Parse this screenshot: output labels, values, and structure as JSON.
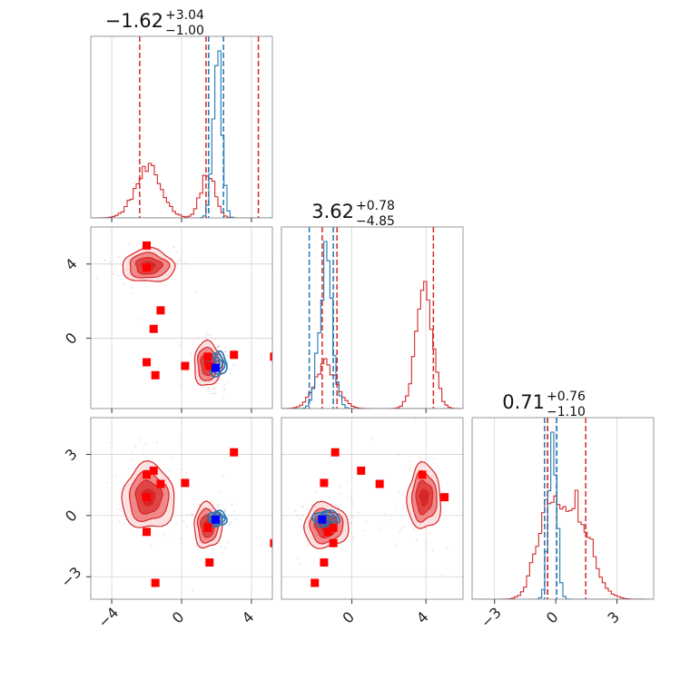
{
  "chart_data": {
    "type": "corner",
    "parameters": [
      {
        "title_value": "−1.62",
        "title_plus": "+3.04",
        "title_minus": "−1.00",
        "range": [
          -5.2,
          5.2
        ],
        "ticks": [
          -4,
          0,
          4
        ],
        "tick_labels": [
          "−4",
          "0",
          "4"
        ]
      },
      {
        "title_value": "3.62",
        "title_plus": "+0.78",
        "title_minus": "−4.85",
        "range": [
          -3.8,
          6.0
        ],
        "ticks": [
          0,
          4
        ],
        "tick_labels": [
          "0",
          "4"
        ]
      },
      {
        "title_value": "0.71",
        "title_plus": "+0.76",
        "title_minus": "−1.10",
        "range": [
          -4.1,
          4.8
        ],
        "ticks": [
          -3,
          0,
          3
        ],
        "tick_labels": [
          "−3",
          "0",
          "3"
        ]
      }
    ],
    "series": [
      {
        "color": "#d62728",
        "modes": [
          {
            "mean": [
              -1.9,
              3.9,
              0.9
            ],
            "sd": [
              0.75,
              0.45,
              0.8
            ],
            "weight": 0.67
          },
          {
            "mean": [
              1.5,
              -1.4,
              -0.5
            ],
            "sd": [
              0.4,
              0.6,
              0.55
            ],
            "weight": 0.33
          }
        ],
        "quantiles": [
          [
            -2.4,
            1.4,
            4.4
          ],
          [
            -1.6,
            -0.8,
            4.4
          ],
          [
            -0.4,
            -0.4,
            1.47
          ]
        ],
        "hist_1d_peak_rel": [
          0.3,
          0.7,
          0.6
        ]
      },
      {
        "color": "#1f77b4",
        "modes": [
          {
            "mean": [
              2.05,
              -1.4,
              -0.15
            ],
            "sd": [
              0.25,
              0.35,
              0.2
            ],
            "weight": 1.0
          }
        ],
        "quantiles": [
          [
            1.55,
            2.4
          ],
          [
            -2.3,
            -1.0
          ],
          [
            -0.55,
            0.05
          ]
        ]
      }
    ],
    "markers": {
      "red_squares": [
        [
          -2.0,
          5.0,
          0.9
        ],
        [
          -2.0,
          3.8,
          2.0
        ],
        [
          -1.6,
          0.5,
          2.2
        ],
        [
          -1.2,
          1.5,
          1.55
        ],
        [
          0.2,
          -1.5,
          1.6
        ],
        [
          1.5,
          -1.0,
          -0.6
        ],
        [
          1.6,
          -1.5,
          -2.3
        ],
        [
          3.0,
          -0.9,
          3.1
        ],
        [
          5.3,
          -1.0,
          -1.35
        ],
        [
          -2.0,
          -1.3,
          -0.8
        ],
        [
          -1.5,
          -2.0,
          -3.3
        ]
      ],
      "blue_squares": [
        [
          1.95,
          -1.6,
          -0.2
        ]
      ]
    }
  }
}
